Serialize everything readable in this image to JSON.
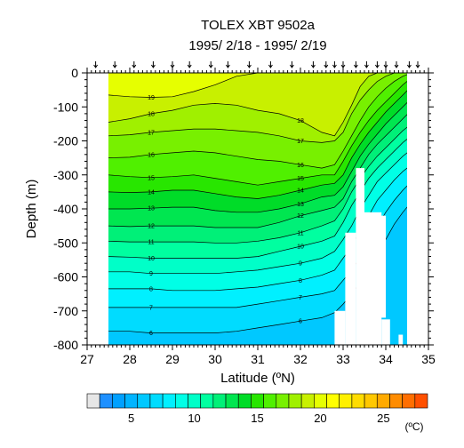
{
  "title": "TOLEX XBT 9502a",
  "subtitle": "1995/ 2/18 - 1995/ 2/19",
  "xlabel": "Latitude (ºN)",
  "ylabel": "Depth (m)",
  "colorbar_unit": "(ºC)",
  "chart_data": {
    "type": "heatmap",
    "title": "TOLEX XBT 9502a",
    "subtitle": "1995/ 2/18 - 1995/ 2/19",
    "xlabel": "Latitude (ºN)",
    "ylabel": "Depth (m)",
    "xlim": [
      27,
      35
    ],
    "ylim": [
      -800,
      0
    ],
    "xticks": [
      "27",
      "28",
      "29",
      "30",
      "31",
      "32",
      "33",
      "34",
      "35"
    ],
    "yticks": [
      "0",
      "-100",
      "-200",
      "-300",
      "-400",
      "-500",
      "-600",
      "-700",
      "-800"
    ],
    "station_latitudes": [
      27.2,
      27.65,
      28.1,
      28.55,
      29.0,
      29.4,
      29.9,
      30.3,
      30.8,
      31.3,
      31.8,
      32.3,
      32.6,
      32.8,
      33.0,
      33.3,
      33.55,
      33.8,
      34.0,
      34.25,
      34.55,
      34.75
    ],
    "grid_latitudes": [
      27.5,
      28.0,
      28.5,
      29.0,
      29.5,
      30.0,
      30.5,
      31.0,
      31.5,
      32.0,
      32.5,
      32.8,
      33.0,
      33.2,
      33.4,
      33.6,
      33.8,
      34.0,
      34.2,
      34.4,
      34.6
    ],
    "contour_levels": [
      6,
      7,
      8,
      9,
      10,
      11,
      12,
      13,
      14,
      15,
      16,
      17,
      18,
      19
    ],
    "contour_depths": {
      "19": [
        -65,
        -70,
        -72,
        -70,
        -55,
        -35,
        -10,
        0,
        0,
        0,
        0,
        0,
        0,
        0,
        0,
        0,
        0,
        0,
        0,
        0,
        0
      ],
      "18": [
        -145,
        -135,
        -120,
        -110,
        -95,
        -90,
        -95,
        -110,
        -120,
        -140,
        -175,
        -185,
        -145,
        -95,
        -40,
        -10,
        0,
        0,
        0,
        0,
        0
      ],
      "17": [
        -185,
        -182,
        -175,
        -170,
        -165,
        -165,
        -170,
        -175,
        -185,
        -200,
        -205,
        -200,
        -175,
        -120,
        -80,
        -50,
        -25,
        -10,
        0,
        0,
        0
      ],
      "16": [
        -250,
        -248,
        -240,
        -235,
        -230,
        -235,
        -245,
        -255,
        -260,
        -270,
        -280,
        -270,
        -230,
        -185,
        -140,
        -100,
        -70,
        -45,
        -25,
        -10,
        0
      ],
      "15": [
        -300,
        -305,
        -308,
        -305,
        -300,
        -310,
        -320,
        -330,
        -320,
        -310,
        -300,
        -300,
        -260,
        -215,
        -175,
        -140,
        -110,
        -85,
        -60,
        -35,
        -15
      ],
      "14": [
        -350,
        -352,
        -350,
        -345,
        -345,
        -355,
        -365,
        -370,
        -360,
        -345,
        -330,
        -325,
        -300,
        -250,
        -210,
        -175,
        -145,
        -115,
        -90,
        -65,
        -40
      ],
      "13": [
        -400,
        -400,
        -398,
        -395,
        -395,
        -405,
        -410,
        -410,
        -400,
        -385,
        -365,
        -360,
        -335,
        -290,
        -245,
        -210,
        -180,
        -150,
        -125,
        -100,
        -75
      ],
      "12": [
        -450,
        -452,
        -450,
        -450,
        -450,
        -455,
        -455,
        -455,
        -440,
        -420,
        -405,
        -395,
        -370,
        -320,
        -280,
        -240,
        -210,
        -185,
        -160,
        -135,
        -110
      ],
      "11": [
        -495,
        -497,
        -497,
        -497,
        -497,
        -500,
        -500,
        -495,
        -485,
        -470,
        -450,
        -435,
        -400,
        -350,
        -310,
        -275,
        -245,
        -220,
        -195,
        -170,
        -150
      ],
      "10": [
        -540,
        -542,
        -545,
        -545,
        -545,
        -545,
        -545,
        -540,
        -525,
        -510,
        -495,
        -480,
        -440,
        -390,
        -350,
        -310,
        -280,
        -255,
        -230,
        -205,
        -185
      ],
      "9": [
        -585,
        -585,
        -590,
        -590,
        -590,
        -590,
        -585,
        -580,
        -570,
        -560,
        -545,
        -525,
        -490,
        -450,
        -400,
        -360,
        -320,
        -295,
        -270,
        -245,
        -225
      ],
      "8": [
        -635,
        -635,
        -635,
        -640,
        -640,
        -640,
        -635,
        -630,
        -620,
        -610,
        -595,
        -580,
        -545,
        -510,
        -460,
        -420,
        -375,
        -345,
        -315,
        -290,
        -270
      ],
      "7": [
        -690,
        -690,
        -690,
        -690,
        -690,
        -690,
        -690,
        -680,
        -670,
        -660,
        -650,
        -640,
        -610,
        -580,
        -540,
        -500,
        -450,
        -410,
        -375,
        -345,
        -320
      ],
      "6": [
        -760,
        -760,
        -765,
        -765,
        -765,
        -765,
        -760,
        -750,
        -740,
        -730,
        -720,
        -705,
        -680,
        -650,
        -615,
        -580,
        -530,
        -490,
        -445,
        -410,
        -380
      ]
    },
    "colorbar": {
      "ticks": [
        "5",
        "10",
        "15",
        "20",
        "25"
      ],
      "unit": "(ºC)",
      "colors": [
        "#e6e6e6",
        "#1e90ff",
        "#00a0ff",
        "#00b4ff",
        "#00c8ff",
        "#00dcff",
        "#00f0ff",
        "#00ffe6",
        "#00ffc8",
        "#00ffa0",
        "#00f078",
        "#00e650",
        "#00dc28",
        "#28e600",
        "#50f000",
        "#78f000",
        "#a0f000",
        "#c8f000",
        "#e6ff00",
        "#ffff00",
        "#fff000",
        "#ffdc00",
        "#ffc800",
        "#ffaa00",
        "#ff8c00",
        "#ff6e00",
        "#ff5000"
      ]
    }
  }
}
